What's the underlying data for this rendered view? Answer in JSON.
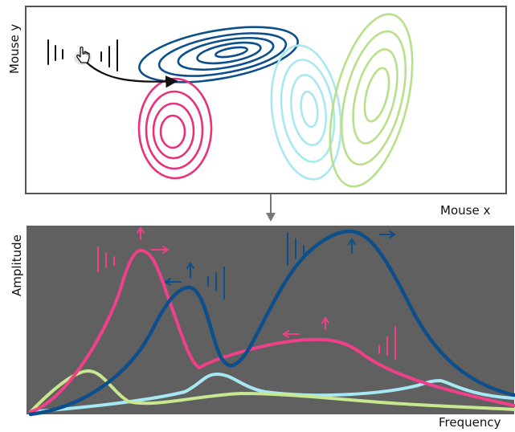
{
  "top_panel": {
    "x_axis_label": "Mouse x",
    "y_axis_label": "Mouse y",
    "cursor_icon": "hand-pointer-icon",
    "ellipse_colors": {
      "magenta": "#e8317a",
      "dark_blue": "#0d4f8b",
      "light_cyan": "#a8e8f0",
      "light_green": "#b8e08a"
    }
  },
  "connector_icon": "arrow-down-icon",
  "bottom_panel": {
    "x_axis_label": "Frequency",
    "y_axis_label": "Amplitude",
    "background": "#5f605f",
    "curve_colors": {
      "magenta": "#f0408a",
      "dark_blue": "#0d4f8b",
      "light_cyan": "#a8e8f4",
      "light_green": "#c8e890"
    }
  }
}
